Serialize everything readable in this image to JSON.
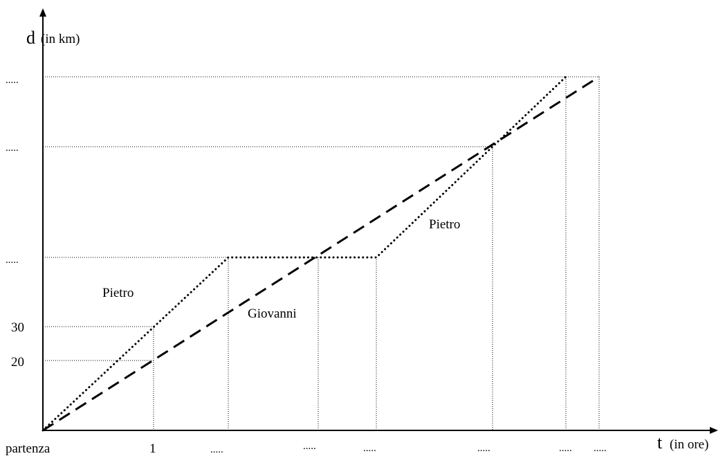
{
  "axes": {
    "y_symbol": "d",
    "y_unit": "(in km)",
    "x_symbol": "t",
    "x_unit": "(in ore)",
    "origin_label": "partenza"
  },
  "x_tick_labels": [
    "1",
    ".....",
    ".....",
    ".....",
    ".....",
    ".....",
    "....."
  ],
  "y_tick_labels": [
    "20",
    "30",
    ".....",
    ".....",
    "....."
  ],
  "series_labels": {
    "pietro_left": "Pietro",
    "pietro_right": "Pietro",
    "giovanni": "Giovanni"
  }
}
